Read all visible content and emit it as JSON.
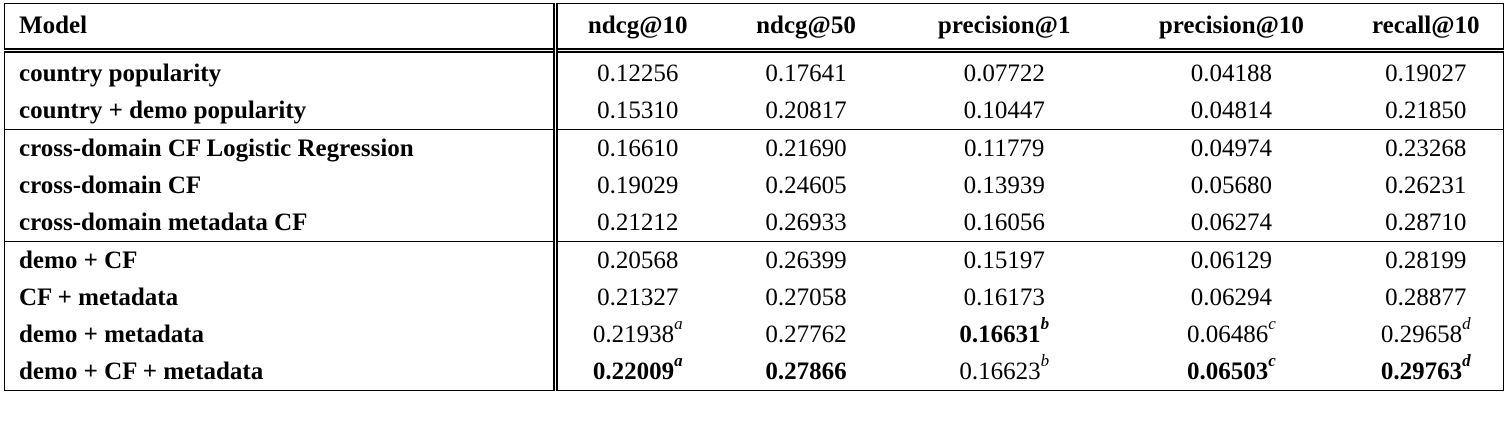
{
  "table": {
    "headers": [
      "Model",
      "ndcg@10",
      "ndcg@50",
      "precision@1",
      "precision@10",
      "recall@10"
    ],
    "rows": [
      {
        "model": "country popularity",
        "ndcg10": "0.12256",
        "ndcg50": "0.17641",
        "p1": "0.07722",
        "p10": "0.04188",
        "r10": "0.19027"
      },
      {
        "model": "country + demo popularity",
        "ndcg10": "0.15310",
        "ndcg50": "0.20817",
        "p1": "0.10447",
        "p10": "0.04814",
        "r10": "0.21850"
      },
      {
        "model": "cross-domain CF Logistic Regression",
        "ndcg10": "0.16610",
        "ndcg50": "0.21690",
        "p1": "0.11779",
        "p10": "0.04974",
        "r10": "0.23268"
      },
      {
        "model": "cross-domain CF",
        "ndcg10": "0.19029",
        "ndcg50": "0.24605",
        "p1": "0.13939",
        "p10": "0.05680",
        "r10": "0.26231"
      },
      {
        "model": "cross-domain metadata CF",
        "ndcg10": "0.21212",
        "ndcg50": "0.26933",
        "p1": "0.16056",
        "p10": "0.06274",
        "r10": "0.28710"
      },
      {
        "model": "demo + CF",
        "ndcg10": "0.20568",
        "ndcg50": "0.26399",
        "p1": "0.15197",
        "p10": "0.06129",
        "r10": "0.28199"
      },
      {
        "model": "CF + metadata",
        "ndcg10": "0.21327",
        "ndcg50": "0.27058",
        "p1": "0.16173",
        "p10": "0.06294",
        "r10": "0.28877"
      },
      {
        "model": "demo + metadata",
        "ndcg10": "0.21938",
        "ndcg10_sup": "a",
        "ndcg50": "0.27762",
        "p1": "0.16631",
        "p1_sup": "b",
        "p10": "0.06486",
        "p10_sup": "c",
        "r10": "0.29658",
        "r10_sup": "d"
      },
      {
        "model": "demo + CF + metadata",
        "ndcg10": "0.22009",
        "ndcg10_sup": "a",
        "ndcg50": "0.27866",
        "p1": "0.16623",
        "p1_sup": "b",
        "p10": "0.06503",
        "p10_sup": "c",
        "r10": "0.29763",
        "r10_sup": "d"
      }
    ]
  }
}
